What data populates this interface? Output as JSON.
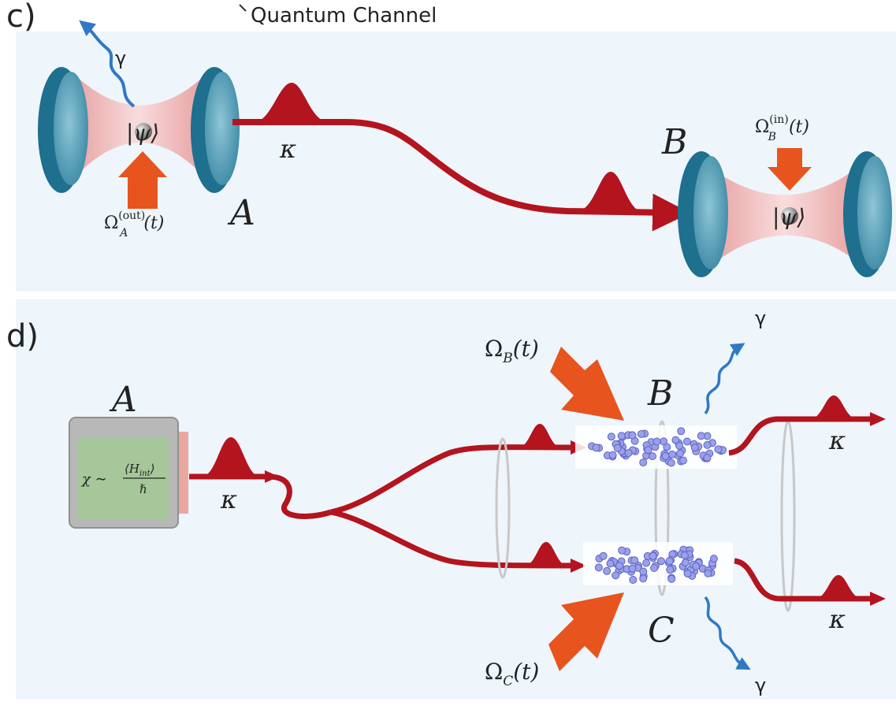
{
  "panel_c": {
    "panel_label": "c)",
    "header_text": "Quantum Channel",
    "node_a_label": "A",
    "node_b_label": "B",
    "gamma_label": "γ",
    "kappa_label": "κ",
    "psi_label": "|ψ⟩",
    "omega_a_out": {
      "base": "Ω",
      "sup": "(out)",
      "sub": "A",
      "tail": "(t)"
    },
    "omega_b_in": {
      "base": "Ω",
      "sup": "(in)",
      "sub": "B",
      "tail": "(t)"
    }
  },
  "panel_d": {
    "panel_label": "d)",
    "node_a_label": "A",
    "node_b_label": "B",
    "node_c_label": "C",
    "gamma_label": "γ",
    "kappa_label": "κ",
    "chi_formula": {
      "lhs": "χ ∼",
      "numerator": "⟨H",
      "num_sub": "int",
      "num_close": "⟩",
      "denominator": "ℏ"
    },
    "omega_b": {
      "base": "Ω",
      "sub": "B",
      "tail": "(t)"
    },
    "omega_c": {
      "base": "Ω",
      "sub": "C",
      "tail": "(t)"
    }
  },
  "colors": {
    "background": "#eef5fb",
    "fiber_red": "#b3141e",
    "pump_orange": "#e8541e",
    "mirror_teal": "#1f6f8f",
    "cavity_pink": "#f2b9b9",
    "photon_blue": "#2f79c4",
    "atom_blue": "#8a90e0",
    "box_green": "#a5c79a"
  }
}
